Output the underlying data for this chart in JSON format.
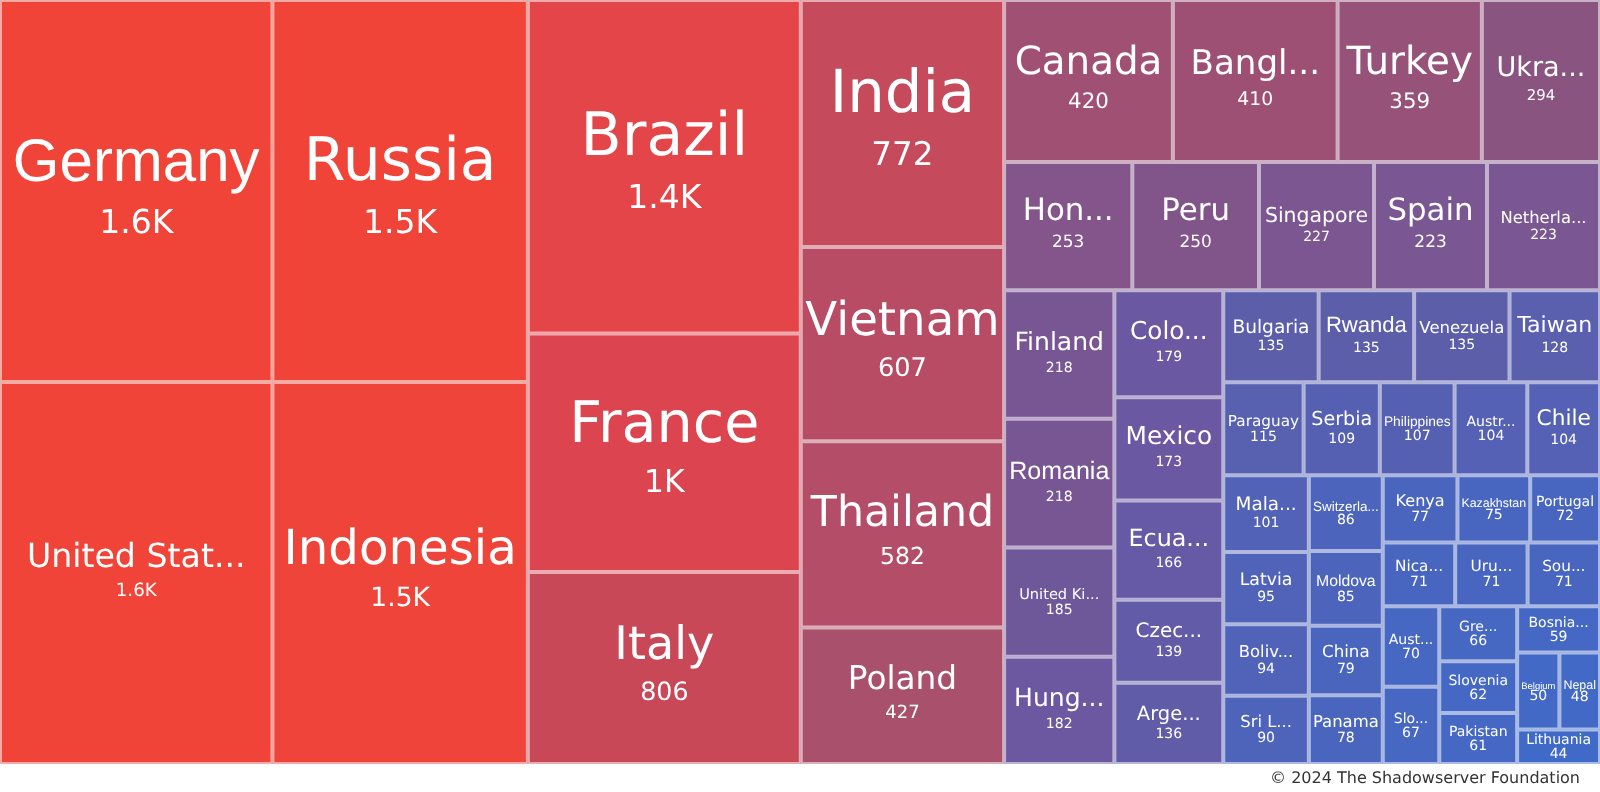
{
  "chart_data": {
    "type": "other",
    "categories": [
      "Germany",
      "United Stat...",
      "Russia",
      "Indonesia",
      "Brazil",
      "France",
      "Italy",
      "India",
      "Vietnam",
      "Thailand",
      "Poland",
      "Canada",
      "Bangl...",
      "Turkey",
      "Ukra...",
      "Hon...",
      "Peru",
      "Singapore",
      "Spain",
      "Netherla...",
      "Finland",
      "Romania",
      "United Ki...",
      "Hung...",
      "Colo...",
      "Mexico",
      "Ecua...",
      "Czec...",
      "Arge...",
      "Bulgaria",
      "Rwanda",
      "Venezuela",
      "Taiwan",
      "Paraguay",
      "Serbia",
      "Philippines",
      "Austr...",
      "Chile",
      "Mala...",
      "Latvia",
      "Boliv...",
      "Sri L...",
      "Switzerla...",
      "Moldova",
      "China",
      "Panama",
      "Kenya",
      "Kazakhstan",
      "Portugal",
      "Nica...",
      "Uru...",
      "Sou...",
      "Aust...",
      "Slo...",
      "Gre...",
      "Slovenia",
      "Pakistan",
      "Bosnia...",
      "Belgium",
      "Nepal",
      "Lithuania"
    ],
    "values": [
      1600,
      1600,
      1500,
      1500,
      1400,
      1000,
      806,
      772,
      607,
      582,
      427,
      420,
      410,
      359,
      294,
      253,
      250,
      227,
      223,
      223,
      218,
      218,
      185,
      182,
      179,
      173,
      166,
      139,
      136,
      135,
      135,
      135,
      128,
      115,
      109,
      107,
      104,
      104,
      101,
      95,
      94,
      90,
      86,
      85,
      79,
      78,
      77,
      75,
      72,
      71,
      71,
      71,
      70,
      67,
      66,
      62,
      61,
      59,
      50,
      48,
      44
    ],
    "value_labels": [
      "1.6K",
      "1.6K",
      "1.5K",
      "1.5K",
      "1.4K",
      "1K",
      "806",
      "772",
      "607",
      "582",
      "427",
      "420",
      "410",
      "359",
      "294",
      "253",
      "250",
      "227",
      "223",
      "223",
      "218",
      "218",
      "185",
      "182",
      "179",
      "173",
      "166",
      "139",
      "136",
      "135",
      "135",
      "135",
      "128",
      "115",
      "109",
      "107",
      "104",
      "104",
      "101",
      "95",
      "94",
      "90",
      "86",
      "85",
      "79",
      "78",
      "77",
      "75",
      "72",
      "71",
      "71",
      "71",
      "70",
      "67",
      "66",
      "62",
      "61",
      "59",
      "50",
      "48",
      "44"
    ],
    "colors": [
      "#f04438",
      "#f04438",
      "#f04438",
      "#ee4439",
      "#e44548",
      "#dc4550",
      "#c84858",
      "#c44a5c",
      "#b84c64",
      "#b44e68",
      "#a8506c",
      "#a05072",
      "#9e5074",
      "#965278",
      "#8a5480",
      "#84558a",
      "#82558a",
      "#7c5690",
      "#7a5692",
      "#7a5692",
      "#785694",
      "#785694",
      "#6e589a",
      "#6c58a0",
      "#6a58a2",
      "#6a58a2",
      "#665aa6",
      "#625ca8",
      "#605ca8",
      "#5c5eaa",
      "#5c5eaa",
      "#5c5eaa",
      "#5a5fae",
      "#5860b0",
      "#5660b2",
      "#5660b2",
      "#5461b4",
      "#5461b4",
      "#5262b6",
      "#5063b8",
      "#5063b8",
      "#4e64ba",
      "#4c64bc",
      "#4c64bc",
      "#4a65be",
      "#4a65be",
      "#4a65be",
      "#4866c0",
      "#4866c0",
      "#4866c0",
      "#4866c0",
      "#4866c0",
      "#4667c2",
      "#4667c2",
      "#4667c2",
      "#4468c4",
      "#4468c4",
      "#4468c4",
      "#4269c6",
      "#4269c6",
      "#406ac8"
    ],
    "annotations": [
      "© 2024 The Shadowserver Foundation"
    ]
  }
}
